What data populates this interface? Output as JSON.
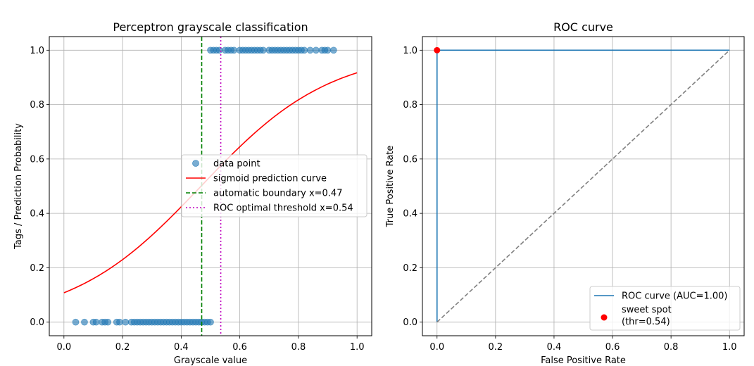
{
  "chart_data": [
    {
      "type": "scatter",
      "title": "Perceptron grayscale classification",
      "xlabel": "Grayscale value",
      "ylabel": "Tags / Prediction Probability",
      "xlim": [
        -0.05,
        1.05
      ],
      "ylim": [
        -0.05,
        1.05
      ],
      "xticks": [
        "0.0",
        "0.2",
        "0.4",
        "0.6",
        "0.8",
        "1.0"
      ],
      "yticks": [
        "0.0",
        "0.2",
        "0.4",
        "0.6",
        "0.8",
        "1.0"
      ],
      "grid": true,
      "legend_position": "center-right",
      "series": [
        {
          "name": "data point",
          "kind": "scatter",
          "color": "#1f77b4",
          "points_x": [
            0.04,
            0.07,
            0.1,
            0.11,
            0.13,
            0.14,
            0.15,
            0.18,
            0.19,
            0.21,
            0.23,
            0.24,
            0.25,
            0.26,
            0.27,
            0.28,
            0.29,
            0.3,
            0.31,
            0.32,
            0.33,
            0.34,
            0.35,
            0.36,
            0.37,
            0.38,
            0.39,
            0.4,
            0.41,
            0.42,
            0.43,
            0.44,
            0.45,
            0.46,
            0.47,
            0.48,
            0.49,
            0.5,
            0.5,
            0.51,
            0.52,
            0.53,
            0.55,
            0.56,
            0.57,
            0.58,
            0.6,
            0.61,
            0.62,
            0.63,
            0.64,
            0.65,
            0.66,
            0.67,
            0.68,
            0.7,
            0.71,
            0.72,
            0.73,
            0.74,
            0.75,
            0.76,
            0.77,
            0.78,
            0.79,
            0.8,
            0.81,
            0.82,
            0.84,
            0.86,
            0.88,
            0.89,
            0.9,
            0.92
          ],
          "points_y": [
            0,
            0,
            0,
            0,
            0,
            0,
            0,
            0,
            0,
            0,
            0,
            0,
            0,
            0,
            0,
            0,
            0,
            0,
            0,
            0,
            0,
            0,
            0,
            0,
            0,
            0,
            0,
            0,
            0,
            0,
            0,
            0,
            0,
            0,
            0,
            0,
            0,
            0,
            1,
            1,
            1,
            1,
            1,
            1,
            1,
            1,
            1,
            1,
            1,
            1,
            1,
            1,
            1,
            1,
            1,
            1,
            1,
            1,
            1,
            1,
            1,
            1,
            1,
            1,
            1,
            1,
            1,
            1,
            1,
            1,
            1,
            1,
            1,
            1
          ]
        },
        {
          "name": "sigmoid prediction curve",
          "kind": "line",
          "color": "#ff0000",
          "x": [
            0.0,
            0.1,
            0.2,
            0.3,
            0.4,
            0.47,
            0.5,
            0.6,
            0.7,
            0.8,
            0.9,
            1.0
          ],
          "y": [
            0.108,
            0.162,
            0.235,
            0.325,
            0.43,
            0.5,
            0.54,
            0.64,
            0.735,
            0.815,
            0.875,
            0.917
          ]
        },
        {
          "name": "automatic boundary x=0.47",
          "kind": "vline",
          "x": 0.47,
          "color": "#008000",
          "style": "dashed"
        },
        {
          "name": "ROC optimal threshold x=0.54",
          "kind": "vline",
          "x": 0.535,
          "color": "#bf00bf",
          "style": "dotted"
        }
      ]
    },
    {
      "type": "line",
      "title": "ROC curve",
      "xlabel": "False Positive Rate",
      "ylabel": "True Positive Rate",
      "xlim": [
        -0.05,
        1.05
      ],
      "ylim": [
        -0.05,
        1.05
      ],
      "xticks": [
        "0.0",
        "0.2",
        "0.4",
        "0.6",
        "0.8",
        "1.0"
      ],
      "yticks": [
        "0.0",
        "0.2",
        "0.4",
        "0.6",
        "0.8",
        "1.0"
      ],
      "grid": true,
      "legend_position": "lower-right",
      "series": [
        {
          "name": "ROC curve (AUC=1.00)",
          "kind": "line",
          "color": "#1f77b4",
          "x": [
            0,
            0,
            1
          ],
          "y": [
            0,
            1,
            1
          ]
        },
        {
          "kind": "diagonal",
          "color": "#808080",
          "style": "dashed",
          "x": [
            0,
            1
          ],
          "y": [
            0,
            1
          ]
        },
        {
          "name_lines": [
            "sweet spot",
            "(thr=0.54)"
          ],
          "kind": "point",
          "color": "#ff0000",
          "x": [
            0
          ],
          "y": [
            1
          ]
        }
      ]
    }
  ]
}
